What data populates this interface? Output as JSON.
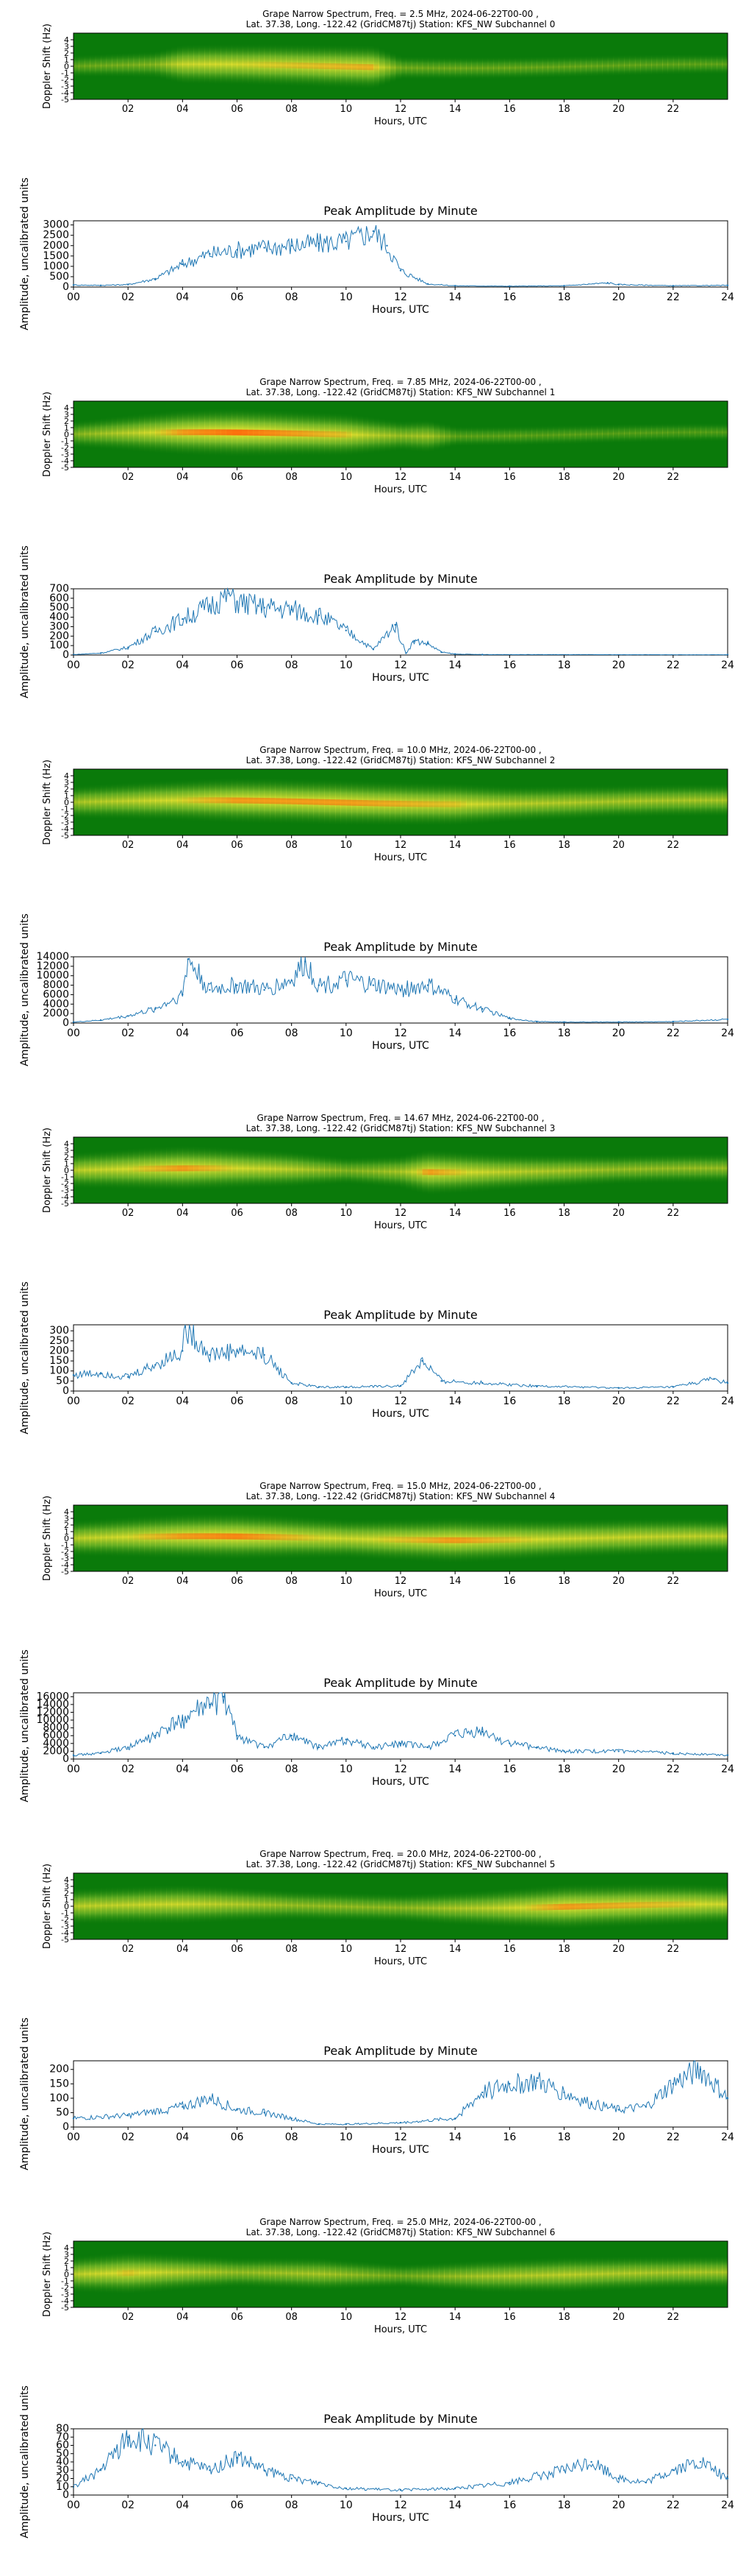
{
  "figure": {
    "common": {
      "location_line": "Lat.  37.38, Long. -122.42 (GridCM87tj) Station: KFS_NW Subchannel",
      "spectrogram_ylabel": "Doppler Shift (Hz)",
      "amplitude_ylabel": "Amplitude, uncalibrated units",
      "xlabel": "Hours, UTC",
      "amplitude_title": "Peak Amplitude by Minute"
    },
    "colors": {
      "line": "#1f77b4",
      "spec_bg": "#0a7a0a",
      "spec_mid": "#ffee33",
      "spec_hot": "#ff4400"
    }
  },
  "chart_data": [
    {
      "type": "heatmap",
      "title": "Grape Narrow Spectrum, Freq. = 2.5 MHz, 2024-06-22T00-00 ,",
      "subtitle": "Lat.  37.38, Long. -122.42 (GridCM87tj) Station: KFS_NW Subchannel 0",
      "xlabel": "Hours, UTC",
      "ylabel": "Doppler Shift (Hz)",
      "xlim": [
        0,
        24
      ],
      "ylim": [
        -5,
        5
      ],
      "yticks": [
        "4",
        "3",
        "2",
        "1",
        "0",
        "-1",
        "-2",
        "-3",
        "-4",
        "-5"
      ],
      "xticks": [
        "02",
        "04",
        "06",
        "08",
        "10",
        "12",
        "14",
        "16",
        "18",
        "20",
        "22"
      ],
      "intensity_profile": [
        [
          0,
          0.15
        ],
        [
          3,
          0.3
        ],
        [
          4,
          0.7
        ],
        [
          8,
          0.8
        ],
        [
          11,
          0.85
        ],
        [
          12,
          0.2
        ],
        [
          24,
          0.1
        ]
      ]
    },
    {
      "type": "line",
      "title": "Peak Amplitude by Minute",
      "xlabel": "Hours, UTC",
      "ylabel": "Amplitude, uncalibrated units",
      "xlim": [
        0,
        24
      ],
      "ylim": [
        0,
        3200
      ],
      "xticks": [
        "00",
        "02",
        "04",
        "06",
        "08",
        "10",
        "12",
        "14",
        "16",
        "18",
        "20",
        "22",
        "24"
      ],
      "yticks": [
        0,
        500,
        1000,
        1500,
        2000,
        2500,
        3000
      ],
      "x": [
        0,
        1,
        2,
        3,
        4,
        5,
        6,
        7,
        8,
        9,
        10,
        11,
        11.5,
        12,
        13,
        14,
        16,
        18,
        19.6,
        20,
        22,
        24
      ],
      "values": [
        100,
        80,
        120,
        400,
        1100,
        1600,
        1800,
        1900,
        2000,
        2100,
        2200,
        2700,
        2000,
        800,
        150,
        60,
        40,
        60,
        200,
        120,
        60,
        80
      ]
    },
    {
      "type": "heatmap",
      "title": "Grape Narrow Spectrum, Freq. = 7.85 MHz, 2024-06-22T00-00 ,",
      "subtitle": "Lat.  37.38, Long. -122.42 (GridCM87tj) Station: KFS_NW Subchannel 1",
      "xlabel": "Hours, UTC",
      "ylabel": "Doppler Shift (Hz)",
      "xlim": [
        0,
        24
      ],
      "ylim": [
        -5,
        5
      ],
      "yticks": [
        "4",
        "3",
        "2",
        "1",
        "0",
        "-1",
        "-2",
        "-3",
        "-4",
        "-5"
      ],
      "xticks": [
        "02",
        "04",
        "06",
        "08",
        "10",
        "12",
        "14",
        "16",
        "18",
        "20",
        "22"
      ],
      "intensity_profile": [
        [
          0,
          0.3
        ],
        [
          2,
          0.6
        ],
        [
          4,
          0.9
        ],
        [
          6,
          1.0
        ],
        [
          10,
          0.8
        ],
        [
          12,
          0.4
        ],
        [
          13,
          0.5
        ],
        [
          14,
          0.1
        ],
        [
          24,
          0.05
        ]
      ]
    },
    {
      "type": "line",
      "title": "Peak Amplitude by Minute",
      "xlabel": "Hours, UTC",
      "ylabel": "Amplitude, uncalibrated units",
      "xlim": [
        0,
        24
      ],
      "ylim": [
        0,
        700
      ],
      "xticks": [
        "00",
        "02",
        "04",
        "06",
        "08",
        "10",
        "12",
        "14",
        "16",
        "18",
        "20",
        "22",
        "24"
      ],
      "yticks": [
        0,
        100,
        200,
        300,
        400,
        500,
        600,
        700
      ],
      "x": [
        0,
        1,
        2,
        3,
        4,
        5,
        5.7,
        6,
        7,
        8,
        9,
        10,
        11,
        11.8,
        12.2,
        12.5,
        13,
        13.5,
        14,
        15,
        24
      ],
      "values": [
        5,
        20,
        80,
        250,
        380,
        520,
        650,
        560,
        500,
        480,
        420,
        260,
        60,
        320,
        20,
        150,
        120,
        30,
        10,
        5,
        3
      ]
    },
    {
      "type": "heatmap",
      "title": "Grape Narrow Spectrum, Freq. = 10.0 MHz, 2024-06-22T00-00 ,",
      "subtitle": "Lat.  37.38, Long. -122.42 (GridCM87tj) Station: KFS_NW Subchannel 2",
      "xlabel": "Hours, UTC",
      "ylabel": "Doppler Shift (Hz)",
      "xlim": [
        0,
        24
      ],
      "ylim": [
        -5,
        5
      ],
      "yticks": [
        "4",
        "3",
        "2",
        "1",
        "0",
        "-1",
        "-2",
        "-3",
        "-4",
        "-5"
      ],
      "xticks": [
        "02",
        "04",
        "06",
        "08",
        "10",
        "12",
        "14",
        "16",
        "18",
        "20",
        "22"
      ],
      "intensity_profile": [
        [
          0,
          0.5
        ],
        [
          3,
          0.7
        ],
        [
          6,
          0.9
        ],
        [
          10,
          0.9
        ],
        [
          14,
          0.8
        ],
        [
          16,
          0.6
        ],
        [
          20,
          0.5
        ],
        [
          24,
          0.5
        ]
      ]
    },
    {
      "type": "line",
      "title": "Peak Amplitude by Minute",
      "xlabel": "Hours, UTC",
      "ylabel": "Amplitude, uncalibrated units",
      "xlim": [
        0,
        24
      ],
      "ylim": [
        0,
        14000
      ],
      "xticks": [
        "00",
        "02",
        "04",
        "06",
        "08",
        "10",
        "12",
        "14",
        "16",
        "18",
        "20",
        "22",
        "24"
      ],
      "yticks": [
        0,
        2000,
        4000,
        6000,
        8000,
        10000,
        12000,
        14000
      ],
      "x": [
        0,
        1,
        2,
        3,
        4,
        4.2,
        5,
        6,
        7,
        8,
        8.5,
        9,
        10,
        11,
        12,
        13,
        14,
        15,
        16,
        17,
        18,
        20,
        22,
        24
      ],
      "values": [
        200,
        600,
        1500,
        3000,
        6000,
        13500,
        7000,
        8000,
        7000,
        9000,
        13000,
        8000,
        9000,
        8000,
        7000,
        8000,
        5000,
        3000,
        1000,
        300,
        200,
        200,
        300,
        800
      ]
    },
    {
      "type": "heatmap",
      "title": "Grape Narrow Spectrum, Freq. = 14.67 MHz, 2024-06-22T00-00 ,",
      "subtitle": "Lat.  37.38, Long. -122.42 (GridCM87tj) Station: KFS_NW Subchannel 3",
      "xlabel": "Hours, UTC",
      "ylabel": "Doppler Shift (Hz)",
      "xlim": [
        0,
        24
      ],
      "ylim": [
        -5,
        5
      ],
      "yticks": [
        "4",
        "3",
        "2",
        "1",
        "0",
        "-1",
        "-2",
        "-3",
        "-4",
        "-5"
      ],
      "xticks": [
        "02",
        "04",
        "06",
        "08",
        "10",
        "12",
        "14",
        "16",
        "18",
        "20",
        "22"
      ],
      "intensity_profile": [
        [
          0,
          0.6
        ],
        [
          4,
          0.9
        ],
        [
          8,
          0.6
        ],
        [
          10,
          0.3
        ],
        [
          12,
          0.5
        ],
        [
          13,
          0.9
        ],
        [
          16,
          0.6
        ],
        [
          20,
          0.4
        ],
        [
          24,
          0.4
        ]
      ]
    },
    {
      "type": "line",
      "title": "Peak Amplitude by Minute",
      "xlabel": "Hours, UTC",
      "ylabel": "Amplitude, uncalibrated units",
      "xlim": [
        0,
        24
      ],
      "ylim": [
        0,
        330
      ],
      "xticks": [
        "00",
        "02",
        "04",
        "06",
        "08",
        "10",
        "12",
        "14",
        "16",
        "18",
        "20",
        "22",
        "24"
      ],
      "yticks": [
        0,
        50,
        100,
        150,
        200,
        250,
        300
      ],
      "x": [
        0,
        1,
        2,
        3,
        4,
        4.1,
        5,
        6,
        7,
        8,
        9,
        10,
        12,
        12.8,
        13.5,
        15,
        17,
        20,
        22,
        23.5,
        24
      ],
      "values": [
        80,
        90,
        70,
        130,
        200,
        320,
        180,
        200,
        180,
        40,
        20,
        20,
        25,
        150,
        50,
        40,
        25,
        15,
        20,
        60,
        40
      ]
    },
    {
      "type": "heatmap",
      "title": "Grape Narrow Spectrum, Freq. = 15.0 MHz, 2024-06-22T00-00 ,",
      "subtitle": "Lat.  37.38, Long. -122.42 (GridCM87tj) Station: KFS_NW Subchannel 4",
      "xlabel": "Hours, UTC",
      "ylabel": "Doppler Shift (Hz)",
      "xlim": [
        0,
        24
      ],
      "ylim": [
        -5,
        5
      ],
      "yticks": [
        "4",
        "3",
        "2",
        "1",
        "0",
        "-1",
        "-2",
        "-3",
        "-4",
        "-5"
      ],
      "xticks": [
        "02",
        "04",
        "06",
        "08",
        "10",
        "12",
        "14",
        "16",
        "18",
        "20",
        "22"
      ],
      "intensity_profile": [
        [
          0,
          0.6
        ],
        [
          4,
          0.9
        ],
        [
          6,
          0.95
        ],
        [
          10,
          0.7
        ],
        [
          14,
          0.9
        ],
        [
          18,
          0.7
        ],
        [
          24,
          0.6
        ]
      ]
    },
    {
      "type": "line",
      "title": "Peak Amplitude by Minute",
      "xlabel": "Hours, UTC",
      "ylabel": "Amplitude, uncalibrated units",
      "xlim": [
        0,
        24
      ],
      "ylim": [
        0,
        17000
      ],
      "xticks": [
        "00",
        "02",
        "04",
        "06",
        "08",
        "10",
        "12",
        "14",
        "16",
        "18",
        "20",
        "22",
        "24"
      ],
      "yticks": [
        0,
        2000,
        4000,
        6000,
        8000,
        10000,
        12000,
        14000,
        16000
      ],
      "x": [
        0,
        1,
        2,
        3,
        4,
        5,
        5.5,
        6,
        7,
        8,
        9,
        10,
        11,
        12,
        13,
        14,
        15,
        16,
        17,
        18,
        20,
        22,
        24
      ],
      "values": [
        1000,
        1500,
        3000,
        6000,
        10000,
        14000,
        16000,
        6000,
        3000,
        6000,
        3000,
        5000,
        3000,
        4000,
        3000,
        6000,
        7000,
        4000,
        3000,
        2000,
        2000,
        1500,
        1000
      ]
    },
    {
      "type": "heatmap",
      "title": "Grape Narrow Spectrum, Freq. = 20.0 MHz, 2024-06-22T00-00 ,",
      "subtitle": "Lat.  37.38, Long. -122.42 (GridCM87tj) Station: KFS_NW Subchannel 5",
      "xlabel": "Hours, UTC",
      "ylabel": "Doppler Shift (Hz)",
      "xlim": [
        0,
        24
      ],
      "ylim": [
        -5,
        5
      ],
      "yticks": [
        "4",
        "3",
        "2",
        "1",
        "0",
        "-1",
        "-2",
        "-3",
        "-4",
        "-5"
      ],
      "xticks": [
        "02",
        "04",
        "06",
        "08",
        "10",
        "12",
        "14",
        "16",
        "18",
        "20",
        "22"
      ],
      "intensity_profile": [
        [
          0,
          0.6
        ],
        [
          4,
          0.7
        ],
        [
          8,
          0.4
        ],
        [
          12,
          0.35
        ],
        [
          15,
          0.6
        ],
        [
          18,
          0.9
        ],
        [
          22,
          0.8
        ],
        [
          24,
          0.7
        ]
      ]
    },
    {
      "type": "line",
      "title": "Peak Amplitude by Minute",
      "xlabel": "Hours, UTC",
      "ylabel": "Amplitude, uncalibrated units",
      "xlim": [
        0,
        24
      ],
      "ylim": [
        0,
        230
      ],
      "xticks": [
        "00",
        "02",
        "04",
        "06",
        "08",
        "10",
        "12",
        "14",
        "16",
        "18",
        "20",
        "22",
        "24"
      ],
      "yticks": [
        0,
        50,
        100,
        150,
        200
      ],
      "x": [
        0,
        2,
        4,
        5,
        6,
        7,
        8,
        9,
        10,
        12,
        14,
        15,
        16,
        17,
        18,
        19,
        20,
        21,
        22,
        23,
        24
      ],
      "values": [
        30,
        40,
        70,
        100,
        60,
        50,
        30,
        10,
        10,
        15,
        30,
        120,
        150,
        160,
        120,
        80,
        60,
        70,
        150,
        200,
        100
      ]
    },
    {
      "type": "heatmap",
      "title": "Grape Narrow Spectrum, Freq. = 25.0 MHz, 2024-06-22T00-00 ,",
      "subtitle": "Lat.  37.38, Long. -122.42 (GridCM87tj) Station: KFS_NW Subchannel 6",
      "xlabel": "Hours, UTC",
      "ylabel": "Doppler Shift (Hz)",
      "xlim": [
        0,
        24
      ],
      "ylim": [
        -5,
        5
      ],
      "yticks": [
        "4",
        "3",
        "2",
        "1",
        "0",
        "-1",
        "-2",
        "-3",
        "-4",
        "-5"
      ],
      "xticks": [
        "02",
        "04",
        "06",
        "08",
        "10",
        "12",
        "14",
        "16",
        "18",
        "20",
        "22"
      ],
      "intensity_profile": [
        [
          0,
          0.6
        ],
        [
          2,
          0.8
        ],
        [
          4,
          0.6
        ],
        [
          6,
          0.4
        ],
        [
          9,
          0.5
        ],
        [
          12,
          0.2
        ],
        [
          15,
          0.5
        ],
        [
          18,
          0.6
        ],
        [
          22,
          0.5
        ],
        [
          24,
          0.5
        ]
      ]
    },
    {
      "type": "line",
      "title": "Peak Amplitude by Minute",
      "xlabel": "Hours, UTC",
      "ylabel": "Amplitude, uncalibrated units",
      "xlim": [
        0,
        24
      ],
      "ylim": [
        0,
        80
      ],
      "xticks": [
        "00",
        "02",
        "04",
        "06",
        "08",
        "10",
        "12",
        "14",
        "16",
        "18",
        "20",
        "22",
        "24"
      ],
      "yticks": [
        0,
        10,
        20,
        30,
        40,
        50,
        60,
        70,
        80
      ],
      "x": [
        0,
        1,
        2,
        3,
        4,
        5,
        6,
        7,
        8,
        9,
        10,
        12,
        14,
        16,
        18,
        19,
        20,
        21,
        22,
        23,
        24
      ],
      "values": [
        10,
        30,
        70,
        60,
        40,
        30,
        45,
        30,
        20,
        15,
        8,
        6,
        8,
        15,
        30,
        40,
        20,
        15,
        30,
        40,
        20
      ]
    }
  ]
}
